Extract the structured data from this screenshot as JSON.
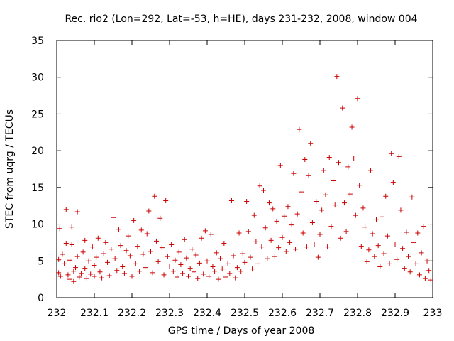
{
  "chart_data": {
    "type": "scatter",
    "title": "Rec. rio2 (Lon=292, Lat=-53, h=HE), days 231-232, 2008, window 004",
    "xlabel": "GPS time / Days of year 2008",
    "ylabel": "STEC from uqrg / TECUs",
    "xlim": [
      232,
      233
    ],
    "ylim": [
      0,
      35
    ],
    "x_ticks": [
      "232",
      "232.1",
      "232.2",
      "232.3",
      "232.4",
      "232.5",
      "232.6",
      "232.7",
      "232.8",
      "232.9",
      "233"
    ],
    "y_ticks": [
      "0",
      "5",
      "10",
      "15",
      "20",
      "25",
      "30",
      "35"
    ],
    "grid": false,
    "marker": "plus",
    "color": "#cc0000",
    "series": [
      {
        "points": [
          [
            232.005,
            5.2
          ],
          [
            232.005,
            3.4
          ],
          [
            232.008,
            9.4
          ],
          [
            232.01,
            2.9
          ],
          [
            232.015,
            5.9
          ],
          [
            232.02,
            4.6
          ],
          [
            232.025,
            12.0
          ],
          [
            232.025,
            7.4
          ],
          [
            232.03,
            3.1
          ],
          [
            232.035,
            2.5
          ],
          [
            232.035,
            5.1
          ],
          [
            232.04,
            9.6
          ],
          [
            232.04,
            7.2
          ],
          [
            232.045,
            3.6
          ],
          [
            232.045,
            2.2
          ],
          [
            232.05,
            4.1
          ],
          [
            232.055,
            11.7
          ],
          [
            232.055,
            5.6
          ],
          [
            232.06,
            2.8
          ],
          [
            232.065,
            3.3
          ],
          [
            232.07,
            6.2
          ],
          [
            232.075,
            7.8
          ],
          [
            232.075,
            4.0
          ],
          [
            232.08,
            2.6
          ],
          [
            232.085,
            5.0
          ],
          [
            232.09,
            3.2
          ],
          [
            232.095,
            6.9
          ],
          [
            232.1,
            2.9
          ],
          [
            232.1,
            4.4
          ],
          [
            232.105,
            5.5
          ],
          [
            232.11,
            8.1
          ],
          [
            232.115,
            3.5
          ],
          [
            232.12,
            2.7
          ],
          [
            232.125,
            6.0
          ],
          [
            232.13,
            7.5
          ],
          [
            232.135,
            4.8
          ],
          [
            232.14,
            3.0
          ],
          [
            232.145,
            6.6
          ],
          [
            232.15,
            10.9
          ],
          [
            232.155,
            5.3
          ],
          [
            232.16,
            3.7
          ],
          [
            232.165,
            9.3
          ],
          [
            232.17,
            7.1
          ],
          [
            232.175,
            4.2
          ],
          [
            232.18,
            3.3
          ],
          [
            232.185,
            6.4
          ],
          [
            232.19,
            8.4
          ],
          [
            232.195,
            5.7
          ],
          [
            232.2,
            2.9
          ],
          [
            232.205,
            10.5
          ],
          [
            232.21,
            4.6
          ],
          [
            232.215,
            7.0
          ],
          [
            232.22,
            3.6
          ],
          [
            232.225,
            9.2
          ],
          [
            232.23,
            5.9
          ],
          [
            232.235,
            4.1
          ],
          [
            232.24,
            8.7
          ],
          [
            232.245,
            11.8
          ],
          [
            232.25,
            6.3
          ],
          [
            232.255,
            3.4
          ],
          [
            232.26,
            13.8
          ],
          [
            232.265,
            7.7
          ],
          [
            232.27,
            4.9
          ],
          [
            232.275,
            10.8
          ],
          [
            232.28,
            6.8
          ],
          [
            232.285,
            3.1
          ],
          [
            232.29,
            13.2
          ],
          [
            232.295,
            5.6
          ],
          [
            232.3,
            4.3
          ],
          [
            232.305,
            7.2
          ],
          [
            232.31,
            3.6
          ],
          [
            232.315,
            5.1
          ],
          [
            232.32,
            2.8
          ],
          [
            232.325,
            6.2
          ],
          [
            232.33,
            4.5
          ],
          [
            232.335,
            3.3
          ],
          [
            232.34,
            7.9
          ],
          [
            232.345,
            5.4
          ],
          [
            232.35,
            2.9
          ],
          [
            232.355,
            4.0
          ],
          [
            232.36,
            6.6
          ],
          [
            232.365,
            3.5
          ],
          [
            232.37,
            5.8
          ],
          [
            232.375,
            2.6
          ],
          [
            232.38,
            4.7
          ],
          [
            232.385,
            8.1
          ],
          [
            232.39,
            3.2
          ],
          [
            232.395,
            9.1
          ],
          [
            232.4,
            5.0
          ],
          [
            232.405,
            2.9
          ],
          [
            232.41,
            8.6
          ],
          [
            232.415,
            4.2
          ],
          [
            232.42,
            3.6
          ],
          [
            232.425,
            6.1
          ],
          [
            232.43,
            2.5
          ],
          [
            232.435,
            5.3
          ],
          [
            232.44,
            3.9
          ],
          [
            232.445,
            7.4
          ],
          [
            232.45,
            2.8
          ],
          [
            232.455,
            4.6
          ],
          [
            232.46,
            3.3
          ],
          [
            232.465,
            13.2
          ],
          [
            232.47,
            5.7
          ],
          [
            232.475,
            2.7
          ],
          [
            232.48,
            4.1
          ],
          [
            232.485,
            8.8
          ],
          [
            232.49,
            3.6
          ],
          [
            232.495,
            6.0
          ],
          [
            232.5,
            4.8
          ],
          [
            232.505,
            13.1
          ],
          [
            232.51,
            9.0
          ],
          [
            232.515,
            5.5
          ],
          [
            232.52,
            3.9
          ],
          [
            232.525,
            11.2
          ],
          [
            232.53,
            7.6
          ],
          [
            232.535,
            4.6
          ],
          [
            232.54,
            15.2
          ],
          [
            232.545,
            6.9
          ],
          [
            232.55,
            14.6
          ],
          [
            232.555,
            9.5
          ],
          [
            232.56,
            5.3
          ],
          [
            232.565,
            12.9
          ],
          [
            232.57,
            7.8
          ],
          [
            232.575,
            12.1
          ],
          [
            232.58,
            5.6
          ],
          [
            232.585,
            10.4
          ],
          [
            232.59,
            6.8
          ],
          [
            232.595,
            18.0
          ],
          [
            232.6,
            8.2
          ],
          [
            232.605,
            11.1
          ],
          [
            232.61,
            6.3
          ],
          [
            232.615,
            12.4
          ],
          [
            232.62,
            7.5
          ],
          [
            232.625,
            9.9
          ],
          [
            232.63,
            16.9
          ],
          [
            232.635,
            6.6
          ],
          [
            232.64,
            11.4
          ],
          [
            232.645,
            22.9
          ],
          [
            232.65,
            14.4
          ],
          [
            232.655,
            8.8
          ],
          [
            232.66,
            18.8
          ],
          [
            232.665,
            6.9
          ],
          [
            232.67,
            16.6
          ],
          [
            232.675,
            21.0
          ],
          [
            232.68,
            10.2
          ],
          [
            232.685,
            7.3
          ],
          [
            232.69,
            13.1
          ],
          [
            232.695,
            5.5
          ],
          [
            232.7,
            8.6
          ],
          [
            232.705,
            11.9
          ],
          [
            232.71,
            17.3
          ],
          [
            232.715,
            14.0
          ],
          [
            232.72,
            6.9
          ],
          [
            232.725,
            19.1
          ],
          [
            232.73,
            9.7
          ],
          [
            232.735,
            15.9
          ],
          [
            232.74,
            12.6
          ],
          [
            232.745,
            30.1
          ],
          [
            232.75,
            18.4
          ],
          [
            232.755,
            8.1
          ],
          [
            232.76,
            25.8
          ],
          [
            232.765,
            12.9
          ],
          [
            232.77,
            9.0
          ],
          [
            232.775,
            17.8
          ],
          [
            232.78,
            14.1
          ],
          [
            232.785,
            23.2
          ],
          [
            232.79,
            19.0
          ],
          [
            232.795,
            11.2
          ],
          [
            232.8,
            27.1
          ],
          [
            232.805,
            15.3
          ],
          [
            232.81,
            7.0
          ],
          [
            232.815,
            12.2
          ],
          [
            232.82,
            9.6
          ],
          [
            232.825,
            4.9
          ],
          [
            232.83,
            6.5
          ],
          [
            232.835,
            17.3
          ],
          [
            232.84,
            8.7
          ],
          [
            232.845,
            5.6
          ],
          [
            232.85,
            10.6
          ],
          [
            232.855,
            7.1
          ],
          [
            232.86,
            4.2
          ],
          [
            232.865,
            11.0
          ],
          [
            232.87,
            6.0
          ],
          [
            232.875,
            13.8
          ],
          [
            232.88,
            8.4
          ],
          [
            232.885,
            4.6
          ],
          [
            232.89,
            19.6
          ],
          [
            232.895,
            15.7
          ],
          [
            232.9,
            7.3
          ],
          [
            232.905,
            5.2
          ],
          [
            232.91,
            19.2
          ],
          [
            232.915,
            11.9
          ],
          [
            232.92,
            6.7
          ],
          [
            232.925,
            4.0
          ],
          [
            232.93,
            8.9
          ],
          [
            232.935,
            5.6
          ],
          [
            232.94,
            3.5
          ],
          [
            232.945,
            13.7
          ],
          [
            232.95,
            7.5
          ],
          [
            232.955,
            4.6
          ],
          [
            232.96,
            8.8
          ],
          [
            232.965,
            3.1
          ],
          [
            232.97,
            6.1
          ],
          [
            232.975,
            9.7
          ],
          [
            232.98,
            2.6
          ],
          [
            232.985,
            5.0
          ],
          [
            232.99,
            3.7
          ],
          [
            232.995,
            2.4
          ]
        ]
      }
    ]
  }
}
